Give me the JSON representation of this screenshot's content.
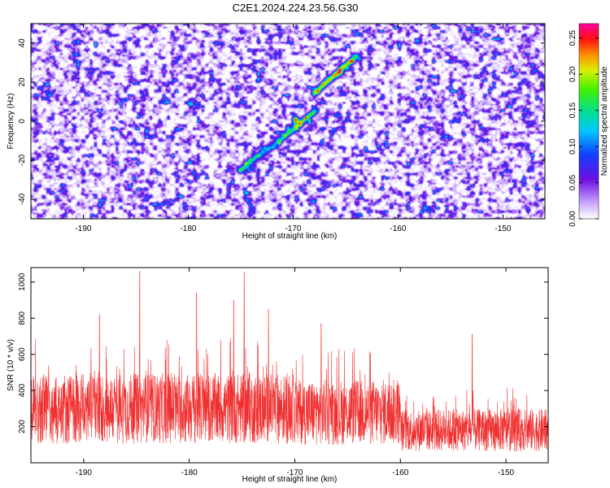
{
  "title": "C2E1.2024.224.23.56.G30",
  "top_chart": {
    "type": "heatmap",
    "xlabel": "Height of straight line (km)",
    "ylabel": "Frequency (Hz)",
    "xlim": [
      -195,
      -146
    ],
    "ylim": [
      -50,
      50
    ],
    "xticks": [
      -190,
      -180,
      -170,
      -160,
      -150
    ],
    "yticks": [
      -40,
      -20,
      0,
      20,
      40
    ],
    "colorbar_label": "Normalized spectral amplitude",
    "colorbar_range": [
      0,
      0.27
    ],
    "colorbar_ticks": [
      "0.00",
      "0.05",
      "0.10",
      "0.15",
      "0.20",
      "0.25"
    ],
    "features": {
      "track_a": {
        "start": [
          -175,
          -25
        ],
        "end": [
          -168,
          5
        ]
      },
      "track_b": {
        "start": [
          -168,
          15
        ],
        "end": [
          -164,
          33
        ]
      },
      "peak": {
        "x": -169.8,
        "y": 1,
        "value": 0.27
      }
    },
    "colors": {
      "low": "#f2eeff",
      "mid": "#8c2ce8",
      "high": "#ff0000"
    }
  },
  "bottom_chart": {
    "type": "line",
    "xlabel": "Height of straight line (km)",
    "ylabel": "SNR (10 * v/v)",
    "xlim": [
      -195,
      -146
    ],
    "ylim": [
      0,
      1080
    ],
    "xticks": [
      -190,
      -180,
      -170,
      -160,
      -150
    ],
    "yticks": [
      200,
      400,
      600,
      800,
      1000
    ],
    "series_name": "SNR",
    "color": "#f03030",
    "notable_peaks": [
      {
        "x": -184.7,
        "y": 1060
      },
      {
        "x": -174.8,
        "y": 1055
      },
      {
        "x": -179.3,
        "y": 940
      },
      {
        "x": -175.8,
        "y": 900
      },
      {
        "x": -188.5,
        "y": 820
      },
      {
        "x": -172.5,
        "y": 850
      },
      {
        "x": -167.5,
        "y": 770
      },
      {
        "x": -153.2,
        "y": 710
      }
    ],
    "baseline_segments": [
      {
        "x_from": -195,
        "x_to": -170,
        "mean": 300
      },
      {
        "x_from": -170,
        "x_to": -160,
        "mean": 280
      },
      {
        "x_from": -160,
        "x_to": -146,
        "mean": 180
      }
    ]
  }
}
